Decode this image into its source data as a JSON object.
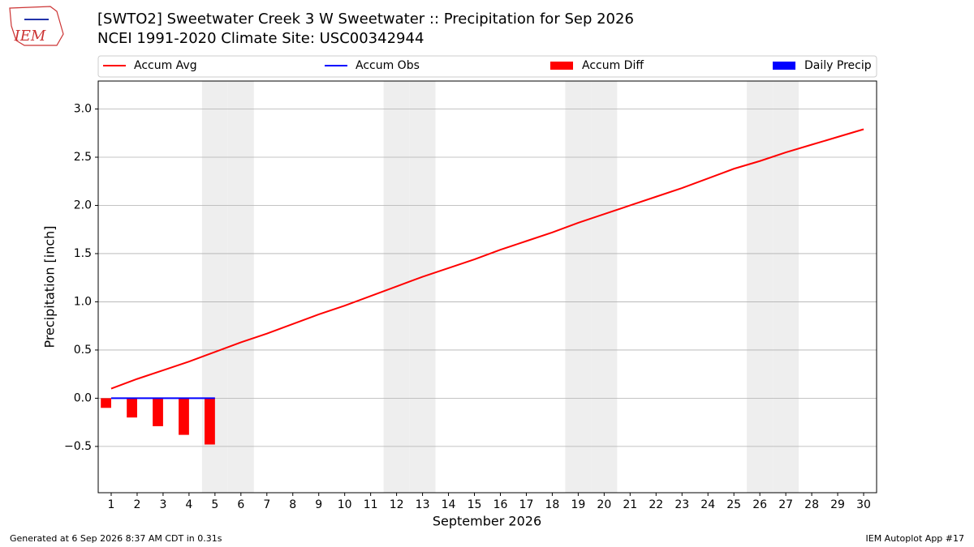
{
  "chart_data": {
    "type": "line",
    "title": "[SWTO2] Sweetwater Creek 3 W Sweetwater :: Precipitation for Sep 2026",
    "subtitle": "NCEI 1991-2020 Climate Site: USC00342944",
    "x_label": "September 2026",
    "y_label": "Precipitation [inch]",
    "x": [
      1,
      2,
      3,
      4,
      5,
      6,
      7,
      8,
      9,
      10,
      11,
      12,
      13,
      14,
      15,
      16,
      17,
      18,
      19,
      20,
      21,
      22,
      23,
      24,
      25,
      26,
      27,
      28,
      29,
      30
    ],
    "series": [
      {
        "name": "Accum Avg",
        "color": "#ff0000",
        "kind": "line",
        "values": [
          0.1,
          0.2,
          0.29,
          0.38,
          0.48,
          0.58,
          0.67,
          0.77,
          0.87,
          0.96,
          1.06,
          1.16,
          1.26,
          1.35,
          1.44,
          1.54,
          1.63,
          1.72,
          1.82,
          1.91,
          2.0,
          2.09,
          2.18,
          2.28,
          2.38,
          2.46,
          2.55,
          2.63,
          2.71,
          2.79
        ]
      },
      {
        "name": "Accum Obs",
        "color": "#0000ff",
        "kind": "line",
        "values": [
          0,
          0,
          0,
          0,
          0,
          null,
          null,
          null,
          null,
          null,
          null,
          null,
          null,
          null,
          null,
          null,
          null,
          null,
          null,
          null,
          null,
          null,
          null,
          null,
          null,
          null,
          null,
          null,
          null,
          null
        ]
      },
      {
        "name": "Accum Diff",
        "color": "#ff0000",
        "kind": "bar",
        "values": [
          -0.1,
          -0.2,
          -0.29,
          -0.38,
          -0.48,
          null,
          null,
          null,
          null,
          null,
          null,
          null,
          null,
          null,
          null,
          null,
          null,
          null,
          null,
          null,
          null,
          null,
          null,
          null,
          null,
          null,
          null,
          null,
          null,
          null
        ]
      },
      {
        "name": "Daily Precip",
        "color": "#0000ff",
        "kind": "bar",
        "values": [
          0,
          0,
          0,
          0,
          0,
          null,
          null,
          null,
          null,
          null,
          null,
          null,
          null,
          null,
          null,
          null,
          null,
          null,
          null,
          null,
          null,
          null,
          null,
          null,
          null,
          null,
          null,
          null,
          null,
          null
        ]
      }
    ],
    "shaded_days": [
      5,
      6,
      12,
      13,
      19,
      20,
      26,
      27
    ],
    "xlim": [
      0.5,
      30.5
    ],
    "xticks": [
      1,
      2,
      3,
      4,
      5,
      6,
      7,
      8,
      9,
      10,
      11,
      12,
      13,
      14,
      15,
      16,
      17,
      18,
      19,
      20,
      21,
      22,
      23,
      24,
      25,
      26,
      27,
      28,
      29,
      30
    ],
    "ylim": [
      -0.98,
      3.29
    ],
    "yticks": [
      {
        "value": -0.5,
        "label": "−0.5"
      },
      {
        "value": 0,
        "label": "0.0"
      },
      0.5,
      {
        "value": 1,
        "label": "1.0"
      },
      1.5,
      {
        "value": 2,
        "label": "2.0"
      },
      2.5,
      {
        "value": 3,
        "label": "3.0"
      }
    ],
    "grid": true,
    "legend": "top",
    "footer_left": "Generated at 6 Sep 2026 8:37 AM CDT in 0.31s",
    "footer_right": "IEM Autoplot App #17",
    "logo": "IEM"
  }
}
